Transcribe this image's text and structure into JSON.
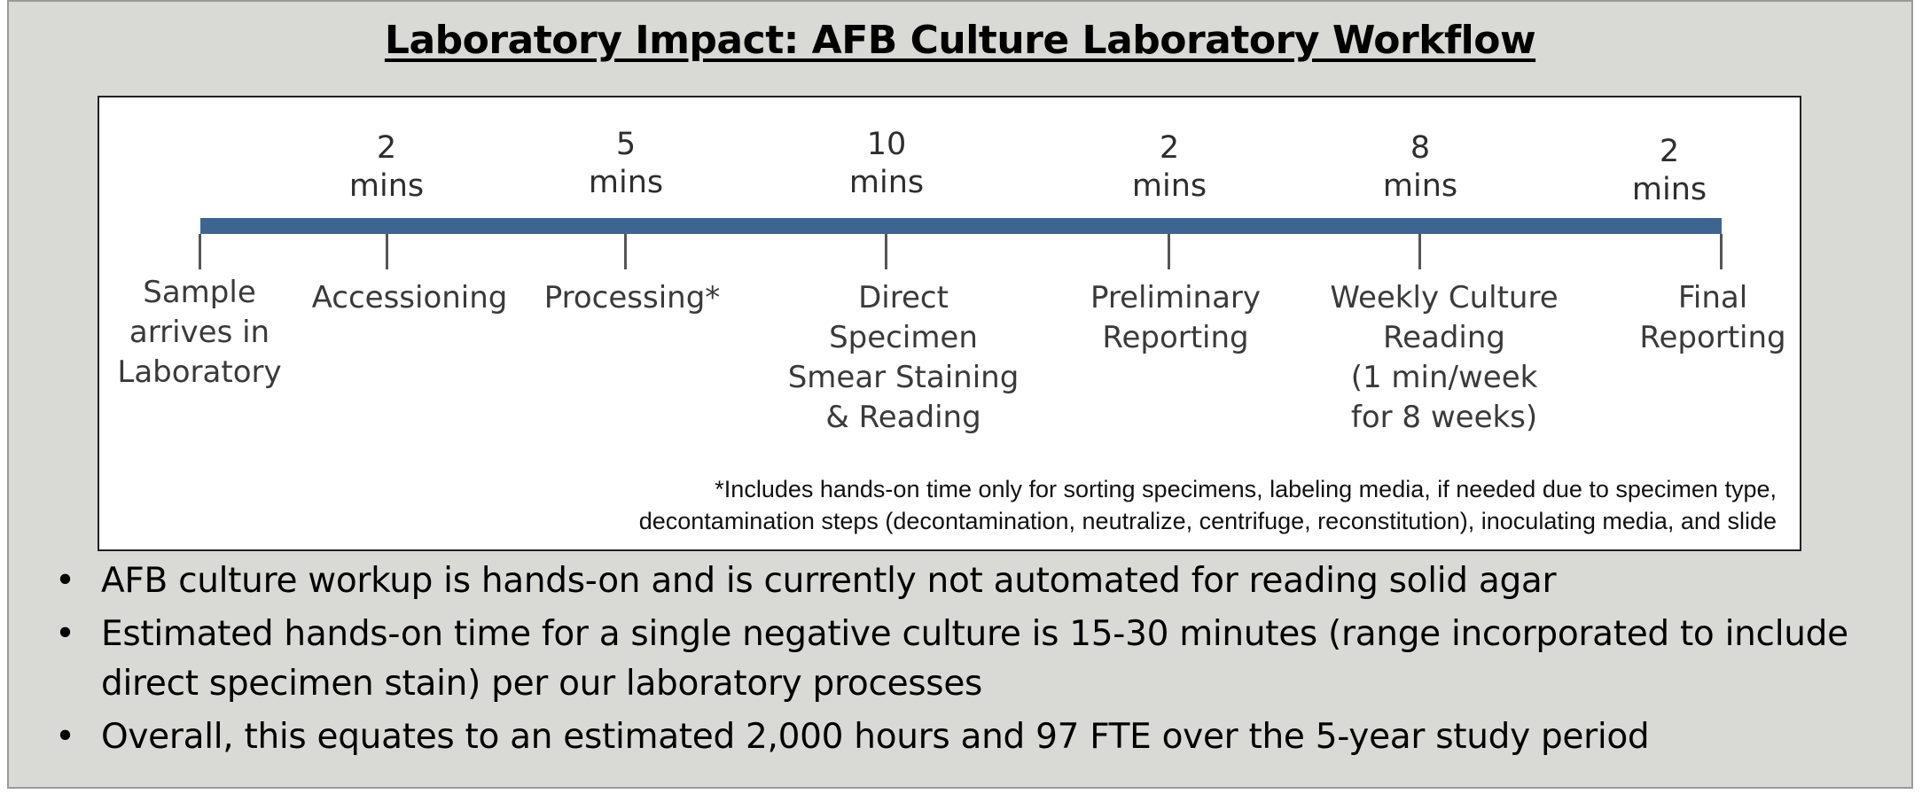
{
  "title": "Laboratory Impact: AFB Culture Laboratory Workflow",
  "timeline": {
    "steps": [
      {
        "label": "Sample\narrives in\nLaboratory",
        "time_value": "",
        "time_unit": ""
      },
      {
        "label": "Accessioning",
        "time_value": "2",
        "time_unit": "mins"
      },
      {
        "label": "Processing*",
        "time_value": "5",
        "time_unit": "mins"
      },
      {
        "label": "Direct\nSpecimen\nSmear Staining\n& Reading",
        "time_value": "10",
        "time_unit": "mins"
      },
      {
        "label": "Preliminary\nReporting",
        "time_value": "2",
        "time_unit": "mins"
      },
      {
        "label": "Weekly Culture\nReading\n(1 min/week\nfor 8 weeks)",
        "time_value": "8",
        "time_unit": "mins"
      },
      {
        "label": "Final\nReporting",
        "time_value": "2",
        "time_unit": "mins"
      }
    ],
    "bar_color": "#3e6591"
  },
  "footnote": {
    "line1": "*Includes hands-on time only for sorting specimens, labeling media, if needed due to specimen type,",
    "line2": "decontamination steps (decontamination, neutralize, centrifuge, reconstitution), inoculating media, and slide"
  },
  "bullets": [
    "AFB culture workup is hands-on and is currently not automated for reading solid agar",
    "Estimated hands-on time for a single negative culture is 15-30 minutes (range incorporated to include direct specimen stain) per our laboratory processes",
    "Overall, this equates to an estimated 2,000 hours and 97 FTE over the 5-year study period"
  ],
  "bullet_glyph": "•"
}
